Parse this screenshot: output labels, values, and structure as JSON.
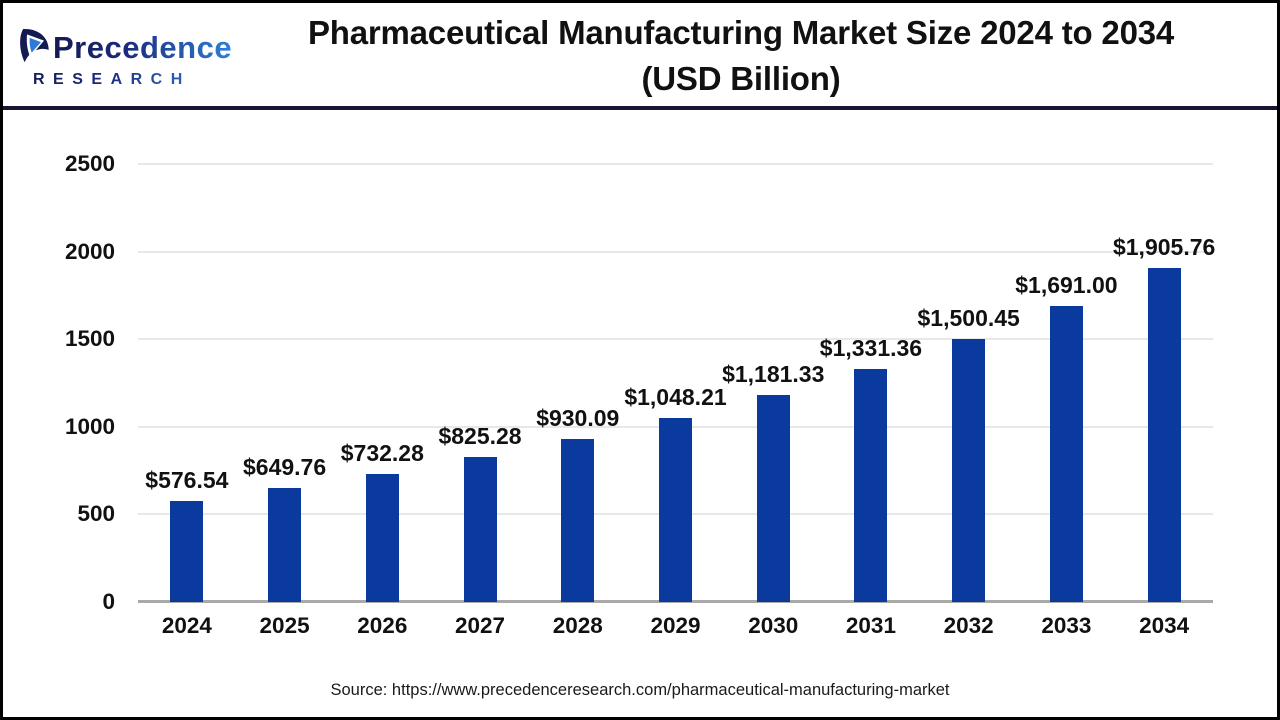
{
  "header": {
    "logo": {
      "name": "Precedence",
      "sub": "RESEARCH"
    },
    "title_line1": "Pharmaceutical Manufacturing Market Size 2024 to 2034",
    "title_line2": "(USD Billion)"
  },
  "chart_data": {
    "type": "bar",
    "title": "Pharmaceutical Manufacturing Market Size 2024 to 2034 (USD Billion)",
    "categories": [
      "2024",
      "2025",
      "2026",
      "2027",
      "2028",
      "2029",
      "2030",
      "2031",
      "2032",
      "2033",
      "2034"
    ],
    "values": [
      576.54,
      649.76,
      732.28,
      825.28,
      930.09,
      1048.21,
      1181.33,
      1331.36,
      1500.45,
      1691.0,
      1905.76
    ],
    "labels": [
      "$576.54",
      "$649.76",
      "$732.28",
      "$825.28",
      "$930.09",
      "$1,048.21",
      "$1,181.33",
      "$1,331.36",
      "$1,500.45",
      "$1,691.00",
      "$1,905.76"
    ],
    "xlabel": "",
    "ylabel": "",
    "ylim": [
      0,
      2500
    ],
    "yticks": [
      0,
      500,
      1000,
      1500,
      2000,
      2500
    ],
    "grid": true,
    "legend": false,
    "bar_color": "#0b3a9e",
    "gridline_color": "#e8e8e8",
    "axis_line_color": "#a9a9a9"
  },
  "footer": {
    "source": "Source: https://www.precedenceresearch.com/pharmaceutical-manufacturing-market"
  }
}
